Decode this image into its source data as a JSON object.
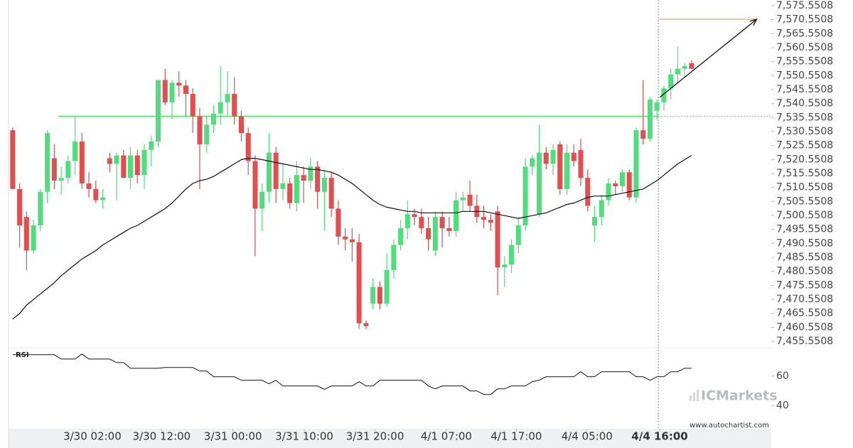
{
  "chart_data": {
    "type": "candlestick",
    "up_color": "#4de07a",
    "down_color": "#e34d4d",
    "xlim": [
      -0.6,
      109.5
    ],
    "ylim": [
      7453.517,
      7577.585
    ],
    "xticks": [
      {
        "value": 11.5,
        "label": "3/30 02:00"
      },
      {
        "value": 21.5,
        "label": "3/30 12:00"
      },
      {
        "value": 31.8,
        "label": "3/31 00:00"
      },
      {
        "value": 42.1,
        "label": "3/31 10:00"
      },
      {
        "value": 52.3,
        "label": "3/31 20:00"
      },
      {
        "value": 62.6,
        "label": "4/1 07:00"
      },
      {
        "value": 72.7,
        "label": "4/1 17:00"
      },
      {
        "value": 82.9,
        "label": "4/4 05:00"
      },
      {
        "value": 93.4,
        "label": "4/4 16:00"
      }
    ],
    "yticks": [
      {
        "value": 7455.5508,
        "label": "7,455.5508"
      },
      {
        "value": 7460.5508,
        "label": "7,460.5508"
      },
      {
        "value": 7465.5508,
        "label": "7,465.5508"
      },
      {
        "value": 7470.5508,
        "label": "7,470.5508"
      },
      {
        "value": 7475.5508,
        "label": "7,475.5508"
      },
      {
        "value": 7480.5508,
        "label": "7,480.5508"
      },
      {
        "value": 7485.5508,
        "label": "7,485.5508"
      },
      {
        "value": 7490.5508,
        "label": "7,490.5508"
      },
      {
        "value": 7495.5508,
        "label": "7,495.5508"
      },
      {
        "value": 7500.5508,
        "label": "7,500.5508"
      },
      {
        "value": 7505.5508,
        "label": "7,505.5508"
      },
      {
        "value": 7510.5508,
        "label": "7,510.5508"
      },
      {
        "value": 7515.5508,
        "label": "7,515.5508"
      },
      {
        "value": 7520.5508,
        "label": "7,520.5508"
      },
      {
        "value": 7525.5508,
        "label": "7,525.5508"
      },
      {
        "value": 7530.5508,
        "label": "7,530.5508"
      },
      {
        "value": 7535.5508,
        "label": "7,535.5508"
      },
      {
        "value": 7540.5508,
        "label": "7,540.5508"
      },
      {
        "value": 7545.5508,
        "label": "7,545.5508"
      },
      {
        "value": 7550.5508,
        "label": "7,550.5508"
      },
      {
        "value": 7555.5508,
        "label": "7,555.5508"
      },
      {
        "value": 7560.5508,
        "label": "7,560.5508"
      },
      {
        "value": 7565.5508,
        "label": "7,565.5508"
      },
      {
        "value": 7570.5508,
        "label": "7,570.5508"
      },
      {
        "value": 7575.5508,
        "label": "7,575.5508"
      }
    ],
    "ohlc": [
      [
        7531,
        7532,
        7510,
        7510
      ],
      [
        7510,
        7512,
        7489,
        7497
      ],
      [
        7500,
        7502,
        7481,
        7488
      ],
      [
        7488,
        7499,
        7487,
        7497
      ],
      [
        7497,
        7510,
        7495,
        7509
      ],
      [
        7509,
        7531,
        7505,
        7530
      ],
      [
        7521,
        7526,
        7510,
        7513
      ],
      [
        7513,
        7518,
        7508,
        7514
      ],
      [
        7514,
        7522,
        7512,
        7520
      ],
      [
        7520,
        7536,
        7515,
        7527
      ],
      [
        7527,
        7530,
        7510,
        7512
      ],
      [
        7512,
        7516,
        7507,
        7510
      ],
      [
        7510,
        7513,
        7505,
        7506
      ],
      [
        7506,
        7510,
        7503,
        7507
      ],
      [
        7521,
        7523,
        7516,
        7519
      ],
      [
        7519,
        7523,
        7506,
        7522
      ],
      [
        7522,
        7524,
        7514,
        7514
      ],
      [
        7514,
        7525,
        7510,
        7522
      ],
      [
        7522,
        7524,
        7512,
        7515
      ],
      [
        7515,
        7526,
        7510,
        7524
      ],
      [
        7524,
        7529,
        7518,
        7527
      ],
      [
        7527,
        7549,
        7525,
        7549
      ],
      [
        7549,
        7553,
        7540,
        7541
      ],
      [
        7541,
        7549,
        7535,
        7548
      ],
      [
        7548,
        7552,
        7543,
        7547
      ],
      [
        7547,
        7549,
        7536,
        7544
      ],
      [
        7544,
        7546,
        7530,
        7536
      ],
      [
        7536,
        7539,
        7510,
        7526
      ],
      [
        7526,
        7536,
        7523,
        7533
      ],
      [
        7533,
        7540,
        7530,
        7537
      ],
      [
        7537,
        7554,
        7533,
        7541
      ],
      [
        7541,
        7552,
        7536,
        7544
      ],
      [
        7544,
        7550,
        7533,
        7536
      ],
      [
        7536,
        7538,
        7527,
        7530
      ],
      [
        7530,
        7532,
        7515,
        7520
      ],
      [
        7520,
        7522,
        7486,
        7503
      ],
      [
        7503,
        7512,
        7495,
        7509
      ],
      [
        7509,
        7530,
        7505,
        7523
      ],
      [
        7523,
        7525,
        7505,
        7510
      ],
      [
        7510,
        7519,
        7506,
        7512
      ],
      [
        7512,
        7514,
        7503,
        7505
      ],
      [
        7505,
        7520,
        7502,
        7515
      ],
      [
        7515,
        7518,
        7505,
        7513
      ],
      [
        7513,
        7521,
        7510,
        7518
      ],
      [
        7518,
        7520,
        7503,
        7509
      ],
      [
        7509,
        7517,
        7495,
        7514
      ],
      [
        7514,
        7516,
        7500,
        7503
      ],
      [
        7503,
        7506,
        7490,
        7493
      ],
      [
        7493,
        7496,
        7488,
        7492
      ],
      [
        7492,
        7496,
        7484,
        7491
      ],
      [
        7491,
        7494,
        7460,
        7462
      ],
      [
        7462,
        7463,
        7460,
        7461
      ],
      [
        7469,
        7478,
        7467,
        7475
      ],
      [
        7475,
        7477,
        7467,
        7469
      ],
      [
        7469,
        7487,
        7468,
        7481
      ],
      [
        7481,
        7492,
        7478,
        7490
      ],
      [
        7490,
        7499,
        7488,
        7496
      ],
      [
        7496,
        7506,
        7492,
        7501
      ],
      [
        7501,
        7503,
        7497,
        7500
      ],
      [
        7500,
        7503,
        7494,
        7496
      ],
      [
        7496,
        7500,
        7488,
        7492
      ],
      [
        7488,
        7502,
        7486,
        7500
      ],
      [
        7500,
        7502,
        7489,
        7496
      ],
      [
        7496,
        7500,
        7493,
        7495
      ],
      [
        7495,
        7509,
        7493,
        7506
      ],
      [
        7506,
        7509,
        7502,
        7507
      ],
      [
        7508,
        7513,
        7502,
        7504
      ],
      [
        7504,
        7508,
        7498,
        7500
      ],
      [
        7500,
        7504,
        7496,
        7499
      ],
      [
        7499,
        7501,
        7495,
        7498
      ],
      [
        7502,
        7504,
        7472,
        7482
      ],
      [
        7482,
        7486,
        7475,
        7483
      ],
      [
        7483,
        7492,
        7480,
        7490
      ],
      [
        7490,
        7500,
        7487,
        7497
      ],
      [
        7497,
        7521,
        7495,
        7518
      ],
      [
        7518,
        7522,
        7515,
        7521
      ],
      [
        7501,
        7533,
        7500,
        7523
      ],
      [
        7523,
        7525,
        7517,
        7519
      ],
      [
        7519,
        7526,
        7515,
        7524
      ],
      [
        7526,
        7527,
        7508,
        7510
      ],
      [
        7510,
        7526,
        7508,
        7523
      ],
      [
        7523,
        7526,
        7518,
        7520
      ],
      [
        7524,
        7528,
        7511,
        7514
      ],
      [
        7514,
        7517,
        7502,
        7504
      ],
      [
        7497,
        7504,
        7491,
        7500
      ],
      [
        7500,
        7508,
        7497,
        7506
      ],
      [
        7506,
        7514,
        7504,
        7512
      ],
      [
        7512,
        7513,
        7508,
        7511
      ],
      [
        7511,
        7517,
        7509,
        7516
      ],
      [
        7516,
        7517,
        7506,
        7507
      ],
      [
        7507,
        7532,
        7505,
        7531
      ],
      [
        7531,
        7549,
        7526,
        7528
      ],
      [
        7528,
        7543,
        7527,
        7542
      ],
      [
        7538,
        7542,
        7535,
        7541
      ],
      [
        7541,
        7547,
        7538,
        7546
      ],
      [
        7546,
        7553,
        7542,
        7551
      ],
      [
        7551,
        7561,
        7548,
        7553
      ],
      [
        7553,
        7555,
        7550,
        7554
      ],
      [
        7555,
        7556,
        7553,
        7553
      ]
    ],
    "ma": {
      "color": "#111111",
      "values": [
        7463.5,
        7465.5,
        7468.5,
        7470.5,
        7472.5,
        7474.5,
        7476.5,
        7479,
        7481,
        7483,
        7485,
        7486.5,
        7488,
        7490,
        7491.5,
        7493,
        7494.5,
        7496,
        7497,
        7498.5,
        7500,
        7501.5,
        7503,
        7505,
        7507.5,
        7510,
        7512,
        7513,
        7513.5,
        7514.5,
        7516,
        7517.5,
        7519,
        7520.5,
        7521,
        7521,
        7520.5,
        7520,
        7519.5,
        7519,
        7518.5,
        7518,
        7517.5,
        7517,
        7517,
        7516.5,
        7516,
        7515,
        7513.5,
        7512,
        7510,
        7508,
        7506,
        7504.5,
        7503.5,
        7503,
        7502.5,
        7502,
        7502,
        7501.5,
        7501.5,
        7501.5,
        7501.5,
        7501.5,
        7501.5,
        7502,
        7502,
        7502,
        7502,
        7501.5,
        7501,
        7500.5,
        7500,
        7499.5,
        7500,
        7500.5,
        7501,
        7501.5,
        7502.5,
        7503.5,
        7504.5,
        7505,
        7506,
        7507,
        7507.5,
        7507.5,
        7507.5,
        7508,
        7508.5,
        7509,
        7509.5,
        7510,
        7511.5,
        7513,
        7515,
        7517,
        7519,
        7520.5,
        7522
      ]
    },
    "levels": [
      {
        "value": 7536,
        "from": 6.6,
        "to": 93.2,
        "color": "#5ced7a"
      }
    ],
    "target": {
      "value": 7570.7,
      "from": 93.2,
      "to": 107.4,
      "color": "#e8a060"
    },
    "arrow": {
      "from": [
        93.4,
        7542.8
      ],
      "to": [
        107.4,
        7570.7
      ]
    },
    "marker_x": 93.2,
    "rsi": {
      "label": "RSI",
      "color": "#111111",
      "ylim": [
        26,
        78.5
      ],
      "yticks": [
        40,
        60
      ],
      "values": [
        74.3,
        74.3,
        74.3,
        74.3,
        74.3,
        74.3,
        74.3,
        71.4,
        71.4,
        71.4,
        74.8,
        71.4,
        71.4,
        71.4,
        71.4,
        69,
        69,
        65.2,
        65.2,
        65.2,
        65.2,
        65.2,
        65.7,
        65.7,
        65.7,
        65.7,
        65.7,
        63.3,
        63.3,
        59.5,
        59.5,
        59.5,
        59.5,
        57.1,
        57.1,
        57.1,
        57.1,
        54.8,
        57.1,
        53.3,
        53.3,
        53.3,
        53.3,
        53.3,
        53.3,
        51,
        53.3,
        53.3,
        53.3,
        53.3,
        56.2,
        53.3,
        53.3,
        57.1,
        57.1,
        57.1,
        57.1,
        57.1,
        57.1,
        57.1,
        53.3,
        51.4,
        53.3,
        53.3,
        53.3,
        53.3,
        50,
        50,
        47.6,
        47.6,
        51.4,
        51.4,
        53.3,
        53.3,
        53.3,
        56.2,
        57.1,
        59.5,
        59.5,
        59.5,
        59.5,
        59.5,
        62.9,
        59.5,
        59.5,
        62.9,
        62.9,
        62.9,
        62.9,
        62.9,
        59.5,
        59.5,
        57.1,
        59.5,
        59.5,
        62.9,
        62.9,
        65.2,
        65.2
      ]
    },
    "watermark": "ICMarkets",
    "source": "www.autochartist.com"
  }
}
